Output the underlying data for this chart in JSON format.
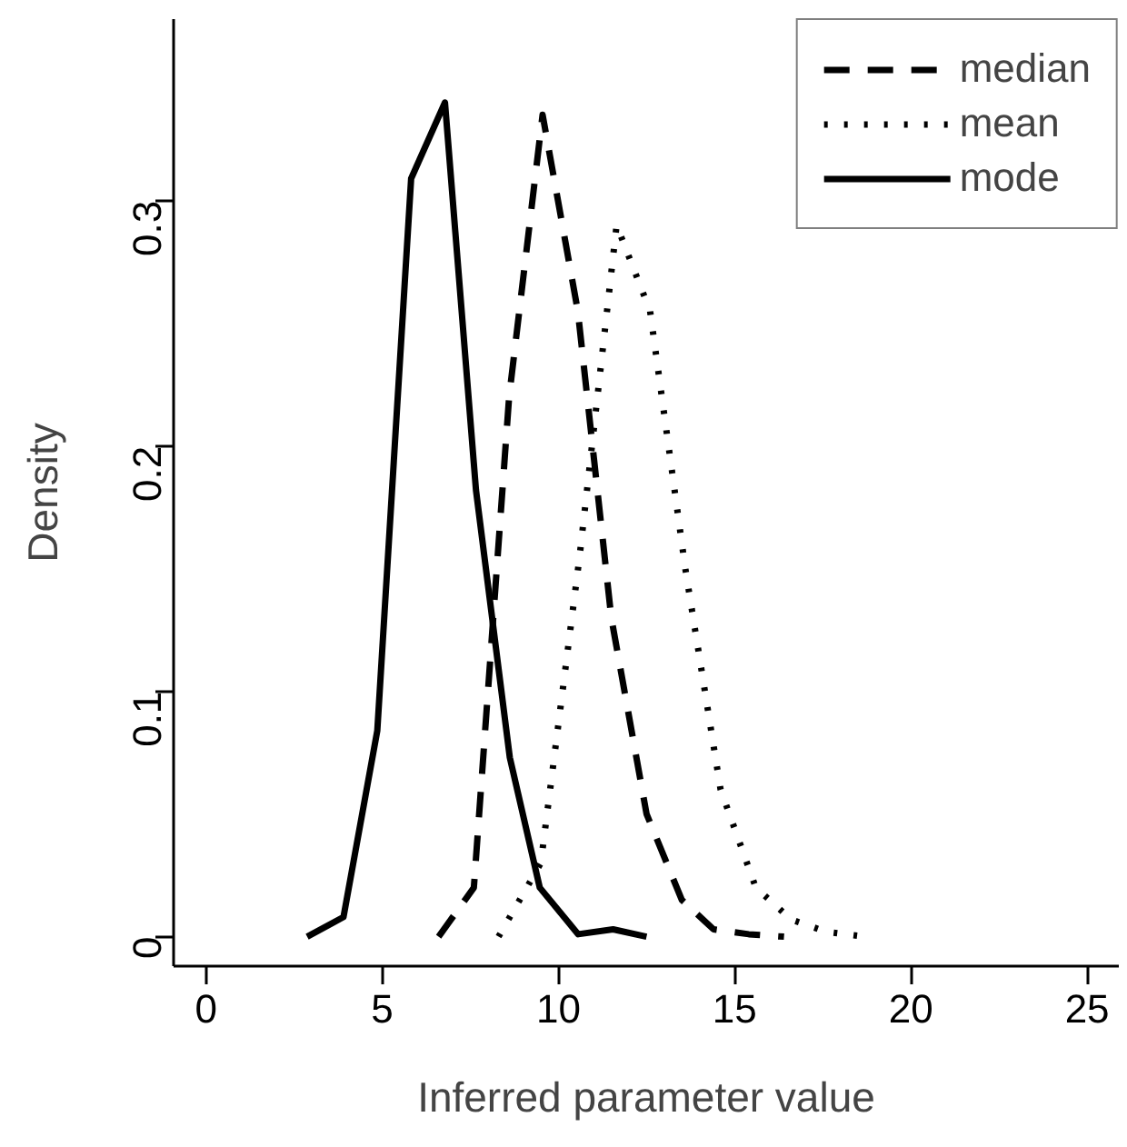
{
  "chart_data": {
    "type": "line",
    "xlabel": "Inferred parameter value",
    "ylabel": "Density",
    "xlim": [
      -0.92,
      25.9
    ],
    "ylim": [
      -0.012,
      0.374
    ],
    "xticks": [
      0,
      5,
      10,
      15,
      20,
      25
    ],
    "yticks": [
      0,
      0.1,
      0.2,
      0.3
    ],
    "grid": false,
    "legend": "top right",
    "marker": "none",
    "series": [
      {
        "name": "median",
        "color": "#000000",
        "line_style": "dashed",
        "x": [
          6.6,
          7.6,
          8.6,
          9.55,
          10.55,
          11.5,
          12.5,
          13.5,
          14.4,
          15.4,
          16.4
        ],
        "values": [
          0,
          0.02,
          0.22,
          0.335,
          0.255,
          0.13,
          0.05,
          0.015,
          0.003,
          0.001,
          0
        ]
      },
      {
        "name": "mean",
        "color": "#000000",
        "line_style": "dotted",
        "x": [
          8.3,
          9.5,
          10.6,
          11.65,
          12.6,
          13.6,
          14.6,
          15.6,
          16.6,
          17.6,
          18.7
        ],
        "values": [
          0,
          0.03,
          0.155,
          0.29,
          0.255,
          0.15,
          0.06,
          0.02,
          0.007,
          0.002,
          0
        ]
      },
      {
        "name": "mode",
        "color": "#000000",
        "line_style": "solid",
        "x": [
          2.87,
          3.9,
          4.86,
          5.82,
          6.78,
          7.66,
          8.62,
          9.47,
          10.56,
          11.55,
          12.5
        ],
        "values": [
          0,
          0.008,
          0.084,
          0.309,
          0.34,
          0.182,
          0.073,
          0.02,
          0.001,
          0.003,
          0
        ]
      }
    ]
  }
}
